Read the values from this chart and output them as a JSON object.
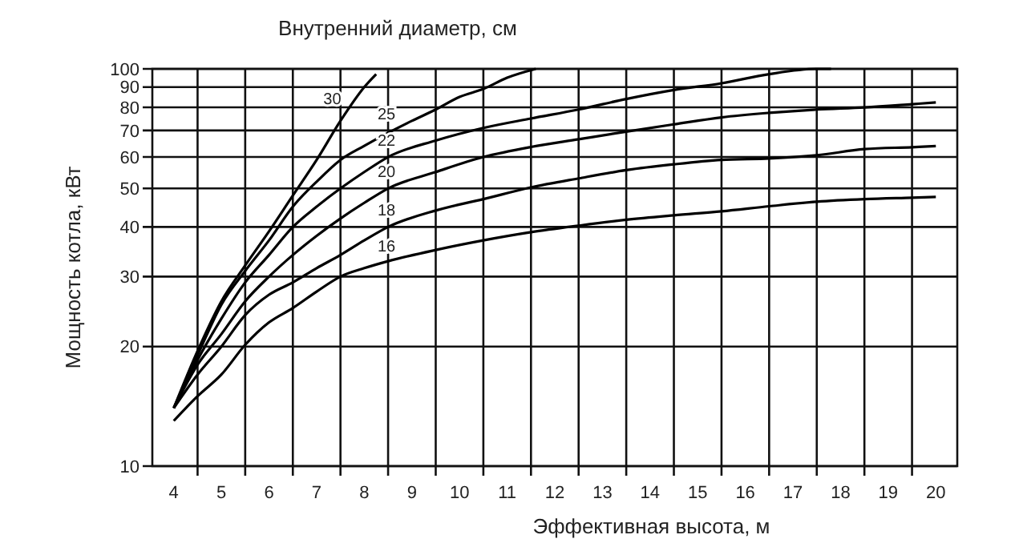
{
  "chart_data": {
    "type": "line",
    "title": "Внутренний диаметр, см",
    "xlabel": "Эффективная высота, м",
    "ylabel": "Мощность котла, кВт",
    "log": "y",
    "grid": true,
    "marker": "none",
    "line_style": "solid",
    "xlim": [
      3.55,
      20.45
    ],
    "ylim": [
      10,
      100
    ],
    "xticks": [
      4,
      {
        "value": 4.5,
        "label": null
      },
      5,
      {
        "value": 5.5,
        "label": null
      },
      6,
      {
        "value": 6.5,
        "label": null
      },
      7,
      {
        "value": 7.5,
        "label": null
      },
      8,
      {
        "value": 8.5,
        "label": null
      },
      9,
      {
        "value": 9.5,
        "label": null
      },
      10,
      {
        "value": 10.5,
        "label": null
      },
      11,
      {
        "value": 11.5,
        "label": null
      },
      12,
      {
        "value": 12.5,
        "label": null
      },
      13,
      {
        "value": 13.5,
        "label": null
      },
      14,
      {
        "value": 14.5,
        "label": null
      },
      15,
      {
        "value": 15.5,
        "label": null
      },
      16,
      {
        "value": 16.5,
        "label": null
      },
      17,
      {
        "value": 17.5,
        "label": null
      },
      18,
      {
        "value": 18.5,
        "label": null
      },
      19,
      {
        "value": 19.5,
        "label": null
      },
      20
    ],
    "yticks": [
      10,
      20,
      30,
      40,
      50,
      60,
      70,
      80,
      90,
      100
    ],
    "series": [
      {
        "name": "30",
        "color": "#000000",
        "x": [
          4,
          4.5,
          5,
          5.5,
          6,
          6.5,
          7,
          7.5,
          8,
          8.25
        ],
        "values": [
          14,
          19.5,
          26,
          32,
          39,
          48,
          59,
          74,
          90,
          97
        ]
      },
      {
        "name": "25",
        "color": "#000000",
        "x": [
          4,
          4.5,
          5,
          5.5,
          6,
          6.5,
          7,
          7.5,
          8,
          8.5,
          9,
          9.5,
          10,
          10.5,
          11,
          11.6
        ],
        "values": [
          14,
          19,
          25.5,
          31,
          37,
          45,
          52,
          59,
          64,
          69,
          74,
          79,
          85,
          89,
          95,
          100
        ]
      },
      {
        "name": "22",
        "color": "#000000",
        "x": [
          4,
          4.5,
          5,
          5.5,
          6,
          6.5,
          7,
          7.5,
          8,
          8.5,
          9.5,
          10.5,
          11.5,
          12.5,
          13.5,
          14.5,
          15.5,
          16.5,
          17.5,
          17.8
        ],
        "values": [
          14,
          18.5,
          23.5,
          29,
          34,
          40,
          45,
          50,
          55,
          60,
          66,
          71,
          75,
          79,
          84,
          88.5,
          92,
          97,
          100,
          100
        ]
      },
      {
        "name": "20",
        "color": "#000000",
        "x": [
          4,
          4.5,
          5,
          5.5,
          6,
          6.5,
          7,
          7.5,
          8,
          8.5,
          9.5,
          10.5,
          11.5,
          12.5,
          13.5,
          14.5,
          15.5,
          16.5,
          17.5,
          18.5,
          19.5,
          20
        ],
        "values": [
          14,
          18,
          21.5,
          26,
          30,
          34,
          38,
          42,
          46,
          50,
          55,
          60,
          63.6,
          66.5,
          69.5,
          72.5,
          75.5,
          77.5,
          79,
          80,
          81.5,
          82.3
        ]
      },
      {
        "name": "18",
        "color": "#000000",
        "x": [
          4,
          4.5,
          5,
          5.5,
          6,
          6.5,
          7,
          7.5,
          8,
          8.5,
          9.5,
          10.5,
          11.5,
          12.5,
          13.5,
          14.5,
          15.5,
          16.5,
          17.5,
          18.5,
          19.5,
          20
        ],
        "values": [
          14,
          17,
          20,
          24,
          27,
          29,
          31.5,
          34,
          37,
          40,
          44,
          47,
          50.3,
          53,
          55.6,
          57.5,
          59,
          59.5,
          60.6,
          62.8,
          63.5,
          63.9
        ]
      },
      {
        "name": "16",
        "color": "#000000",
        "x": [
          4,
          4.5,
          5,
          5.5,
          6,
          6.5,
          7,
          7.5,
          8,
          8.5,
          9.5,
          10.5,
          11.5,
          12.5,
          13.5,
          14.5,
          15.5,
          16.5,
          17.5,
          18.5,
          19.5,
          20
        ],
        "values": [
          13,
          15,
          17,
          20.2,
          23,
          25,
          27.5,
          30,
          31.5,
          32.8,
          35,
          37,
          38.8,
          40.3,
          41.7,
          42.8,
          43.8,
          45.1,
          46.3,
          47,
          47.4,
          47.6
        ]
      }
    ]
  }
}
